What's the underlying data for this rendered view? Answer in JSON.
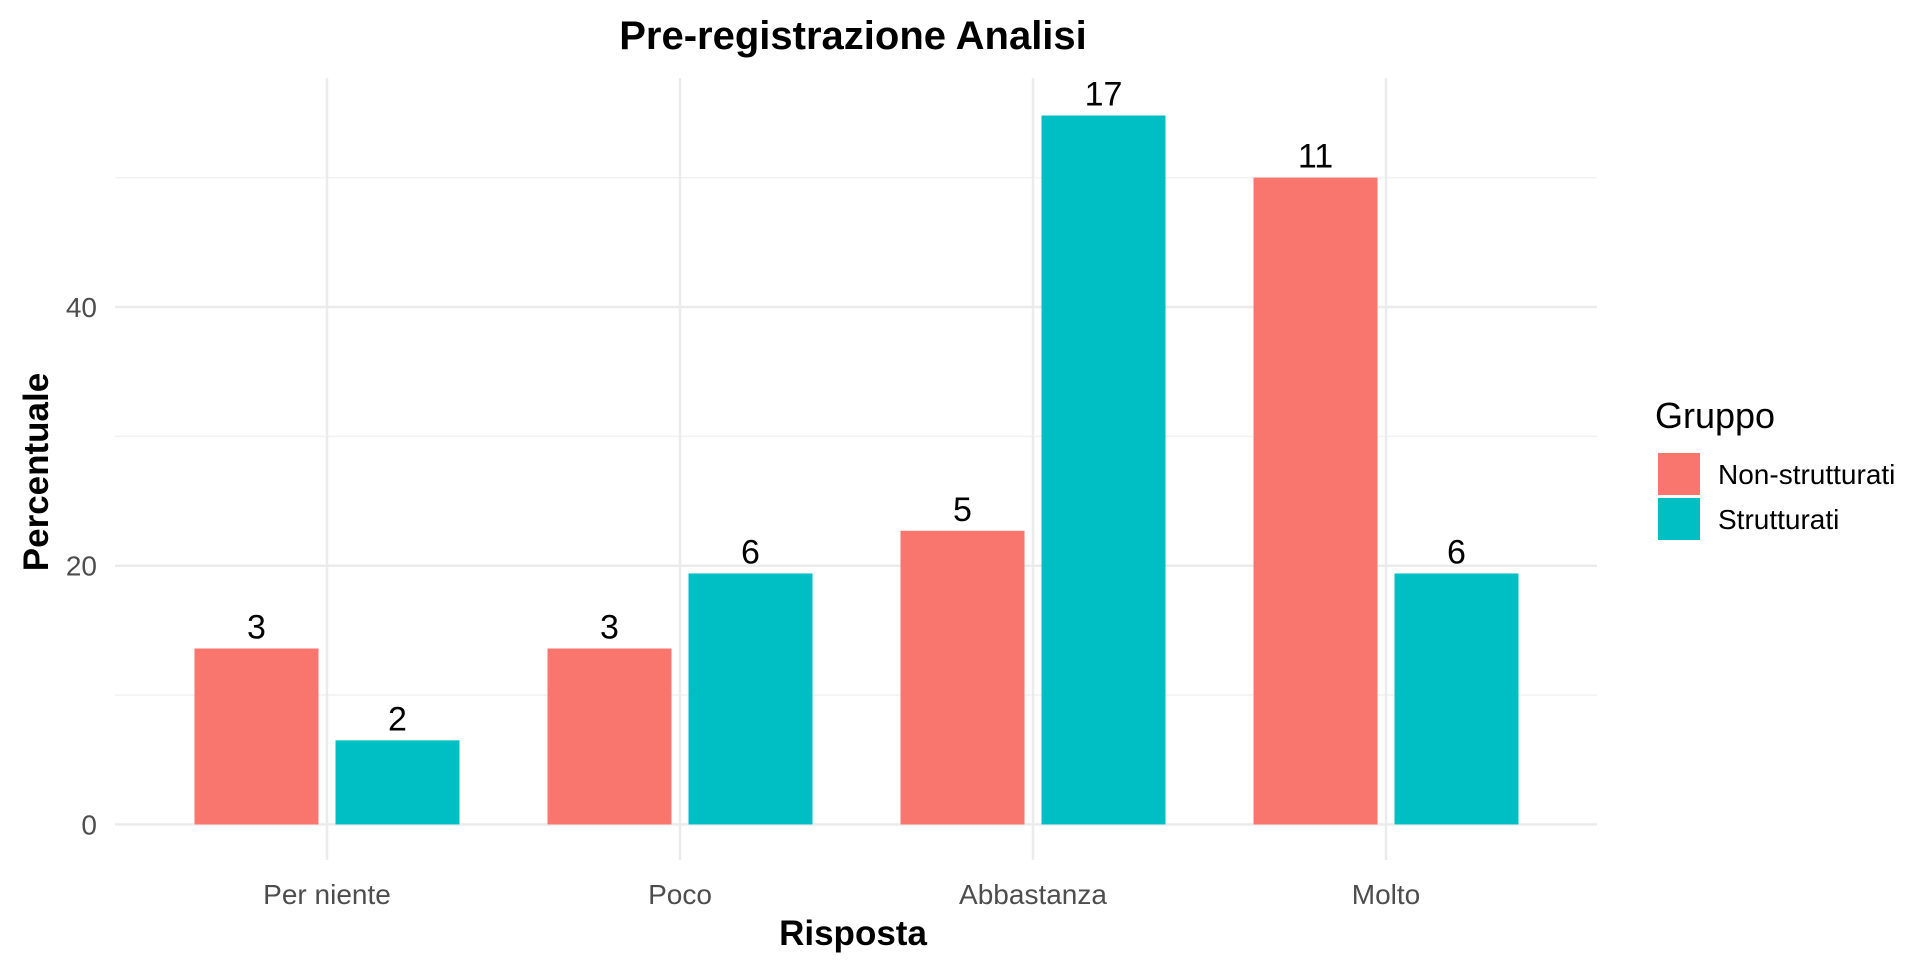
{
  "chart_data": {
    "type": "bar",
    "title": "Pre-registrazione Analisi",
    "xlabel": "Risposta",
    "ylabel": "Percentuale",
    "categories": [
      "Per niente",
      "Poco",
      "Abbastanza",
      "Molto"
    ],
    "series": [
      {
        "name": "Non-strutturati",
        "color": "#F8766D",
        "values": [
          13.6,
          13.6,
          22.7,
          50.0
        ],
        "labels": [
          "3",
          "3",
          "5",
          "11"
        ]
      },
      {
        "name": "Strutturati",
        "color": "#00BFC4",
        "values": [
          6.5,
          19.4,
          54.8,
          19.4
        ],
        "labels": [
          "2",
          "6",
          "17",
          "6"
        ]
      }
    ],
    "yticks": [
      0,
      20,
      40
    ],
    "ylim": [
      -2.75,
      57.7
    ],
    "grid": true,
    "legend_title": "Gruppo",
    "legend_position": "right"
  }
}
